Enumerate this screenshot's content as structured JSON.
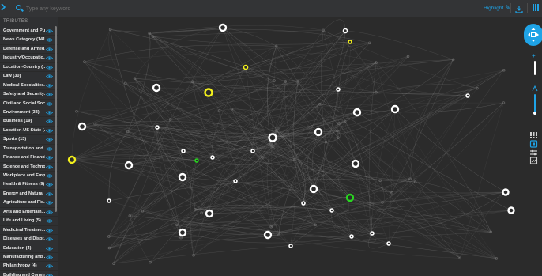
{
  "search": {
    "placeholder": "Type any keyword"
  },
  "toolbar": {
    "highlight_label": "Highlight",
    "highlight_glyph": "✎"
  },
  "sidebar": {
    "header": "TRIBUTES",
    "items": [
      {
        "label": "Government and Pu..."
      },
      {
        "label": "News Category (141)"
      },
      {
        "label": "Defense and Armed..."
      },
      {
        "label": "Industry/Occupatio..."
      },
      {
        "label": "Location-Country (..."
      },
      {
        "label": "Law (30)"
      },
      {
        "label": "Medical Specialties..."
      },
      {
        "label": "Safety and Security..."
      },
      {
        "label": "Civil and Social Soci..."
      },
      {
        "label": "Environment (33)"
      },
      {
        "label": "Business (19)"
      },
      {
        "label": "Location-US State (..."
      },
      {
        "label": "Sports (13)"
      },
      {
        "label": "Transportation and ..."
      },
      {
        "label": "Finance and Financi..."
      },
      {
        "label": "Science and Techno..."
      },
      {
        "label": "Workplace and Emp..."
      },
      {
        "label": "Health & Fitness (9)"
      },
      {
        "label": "Energy and Natural ..."
      },
      {
        "label": "Agriculture and Fis..."
      },
      {
        "label": "Arts and Entertain..."
      },
      {
        "label": "Life and Living (5)"
      },
      {
        "label": "Medicinal Treatme..."
      },
      {
        "label": "Diseases and Disor..."
      },
      {
        "label": "Education (4)"
      },
      {
        "label": "Manufacturing and ..."
      },
      {
        "label": "Philanthropy (4)"
      },
      {
        "label": "Building and Constr..."
      }
    ]
  },
  "colors": {
    "accent": "#1fa3e6",
    "background": "#2b2b2b",
    "node_white": "#ffffff",
    "node_yellow": "#f2ef1c",
    "node_green": "#28d61f",
    "edge": "#9a9a9a"
  }
}
